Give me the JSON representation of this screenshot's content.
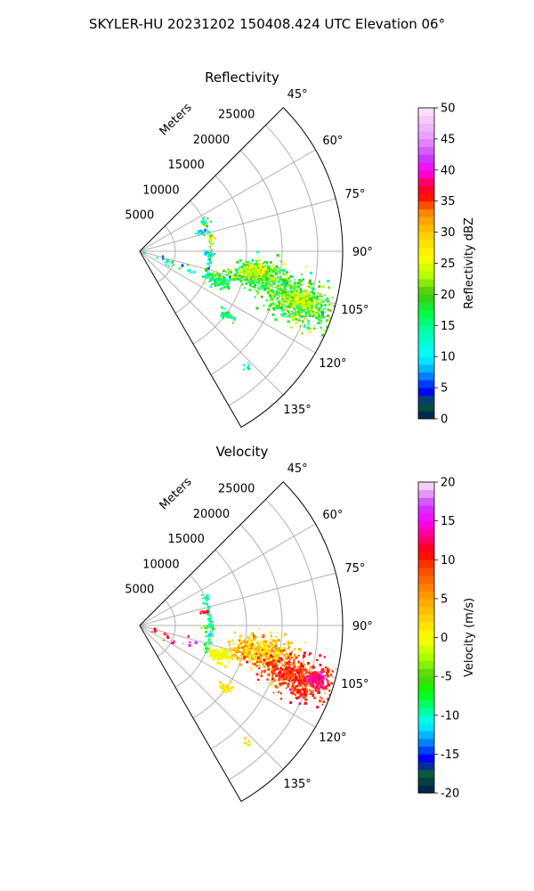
{
  "figure": {
    "suptitle": "SKYLER-HU  20231202  150408.424 UTC Elevation 06°"
  },
  "colors": {
    "grid": "#b0b0b0",
    "axes": "#000000",
    "background": "#ffffff"
  },
  "chart_data": [
    {
      "type": "heatmap",
      "projection": "polar-sector",
      "title": "Reflectivity",
      "range_label": "Meters",
      "range_ticks": [
        5000,
        10000,
        15000,
        20000,
        25000
      ],
      "range_max": 28500,
      "azimuth_range_deg": [
        45,
        150
      ],
      "azimuth_tick_labels": [
        "45°",
        "60°",
        "75°",
        "90°",
        "105°",
        "120°",
        "135°"
      ],
      "azimuth_ticks_deg": [
        45,
        60,
        75,
        90,
        105,
        120,
        135
      ],
      "grid": true,
      "colorbar": {
        "label": "Reflectivity dBZ",
        "min": 0,
        "max": 50,
        "ticks": [
          0,
          5,
          10,
          15,
          20,
          25,
          30,
          35,
          40,
          45,
          50
        ],
        "stops": [
          [
            0,
            "#001a4d"
          ],
          [
            2.5,
            "#0a5a3a"
          ],
          [
            4.5,
            "#0000ff"
          ],
          [
            7.5,
            "#00a0ff"
          ],
          [
            10,
            "#00ffff"
          ],
          [
            14,
            "#00ffb0"
          ],
          [
            17,
            "#00ff40"
          ],
          [
            20,
            "#3cc80a"
          ],
          [
            23,
            "#b4ff00"
          ],
          [
            26,
            "#ffff00"
          ],
          [
            30,
            "#ffc800"
          ],
          [
            33,
            "#ff8c00"
          ],
          [
            36,
            "#ff0000"
          ],
          [
            38,
            "#ff0064"
          ],
          [
            40,
            "#ff00ff"
          ],
          [
            42,
            "#c83cff"
          ],
          [
            45,
            "#e696ff"
          ],
          [
            48,
            "#f5c8f5"
          ],
          [
            50,
            "#ffe6ff"
          ]
        ]
      },
      "echoes": [
        {
          "type": "arc",
          "range": 10000,
          "az": [
            62,
            112
          ],
          "count": 60,
          "v": 15,
          "spread": 4
        },
        {
          "type": "blob",
          "az": 102,
          "range": 17500,
          "saz": 3.5,
          "sr": 2200,
          "count": 420,
          "v": 19,
          "spread": 4
        },
        {
          "type": "blob",
          "az": 108,
          "range": 23500,
          "saz": 3.5,
          "sr": 2600,
          "count": 520,
          "v": 19,
          "spread": 4
        },
        {
          "type": "blob",
          "az": 100,
          "range": 16500,
          "saz": 1.5,
          "sr": 1000,
          "count": 120,
          "v": 24,
          "spread": 2
        },
        {
          "type": "blob",
          "az": 107,
          "range": 23500,
          "saz": 1.5,
          "sr": 1200,
          "count": 140,
          "v": 24,
          "spread": 2
        },
        {
          "type": "blob",
          "az": 110,
          "range": 12000,
          "saz": 2.2,
          "sr": 800,
          "count": 110,
          "v": 17,
          "spread": 3
        },
        {
          "type": "blob",
          "az": 126,
          "range": 15000,
          "saz": 1.2,
          "sr": 600,
          "count": 30,
          "v": 16,
          "spread": 2
        },
        {
          "type": "blob",
          "az": 137,
          "range": 22000,
          "saz": 0.6,
          "sr": 300,
          "count": 8,
          "v": 15,
          "spread": 3
        },
        {
          "type": "blob",
          "az": 73,
          "range": 9000,
          "saz": 1.0,
          "sr": 400,
          "count": 10,
          "v": 8,
          "spread": 2
        },
        {
          "type": "blob",
          "az": 92,
          "range": 9400,
          "saz": 1.0,
          "sr": 400,
          "count": 10,
          "v": 8,
          "spread": 2
        },
        {
          "type": "blob",
          "az": 80,
          "range": 10200,
          "saz": 1.0,
          "sr": 300,
          "count": 6,
          "v": 27,
          "spread": 3
        },
        {
          "type": "blob",
          "az": 110,
          "range": 4500,
          "saz": 4.0,
          "sr": 1800,
          "count": 20,
          "v": 12,
          "spread": 5
        }
      ]
    },
    {
      "type": "heatmap",
      "projection": "polar-sector",
      "title": "Velocity",
      "range_label": "Meters",
      "range_ticks": [
        5000,
        10000,
        15000,
        20000,
        25000
      ],
      "range_max": 28500,
      "azimuth_range_deg": [
        45,
        150
      ],
      "azimuth_tick_labels": [
        "45°",
        "60°",
        "75°",
        "90°",
        "105°",
        "120°",
        "135°"
      ],
      "azimuth_ticks_deg": [
        45,
        60,
        75,
        90,
        105,
        120,
        135
      ],
      "grid": true,
      "colorbar": {
        "label": "Velocity (m/s)",
        "min": -20,
        "max": 20,
        "ticks": [
          -20,
          -15,
          -10,
          -5,
          0,
          5,
          10,
          15,
          20
        ],
        "stops": [
          [
            -20,
            "#001a4d"
          ],
          [
            -17.5,
            "#0a5a3a"
          ],
          [
            -15.5,
            "#0000ff"
          ],
          [
            -13,
            "#00a0ff"
          ],
          [
            -11,
            "#00ffff"
          ],
          [
            -9,
            "#00ff80"
          ],
          [
            -7,
            "#00ff00"
          ],
          [
            -5,
            "#50d20a"
          ],
          [
            -3,
            "#96ff00"
          ],
          [
            -1,
            "#e6ff00"
          ],
          [
            0,
            "#ffff00"
          ],
          [
            3,
            "#ffc800"
          ],
          [
            6,
            "#ff8c00"
          ],
          [
            9,
            "#ff4000"
          ],
          [
            11,
            "#ff0000"
          ],
          [
            13,
            "#ff0080"
          ],
          [
            15,
            "#ff00ff"
          ],
          [
            17,
            "#c83cff"
          ],
          [
            19,
            "#f0b4f0"
          ],
          [
            20,
            "#ffe6ff"
          ]
        ]
      },
      "echoes": [
        {
          "type": "arc",
          "range": 10000,
          "az": [
            62,
            112
          ],
          "count": 60,
          "v": -9,
          "spread": 1.5
        },
        {
          "type": "blob",
          "az": 102,
          "range": 17500,
          "saz": 3.5,
          "sr": 2200,
          "count": 420,
          "v": 3,
          "spread": 2.5
        },
        {
          "type": "blob",
          "az": 108,
          "range": 23500,
          "saz": 3.5,
          "sr": 2600,
          "count": 520,
          "v": 9.5,
          "spread": 1.8
        },
        {
          "type": "blob",
          "az": 107,
          "range": 26000,
          "saz": 1.2,
          "sr": 800,
          "count": 80,
          "v": 13.5,
          "spread": 1
        },
        {
          "type": "blob",
          "az": 110,
          "range": 12000,
          "saz": 2.2,
          "sr": 800,
          "count": 110,
          "v": 0,
          "spread": 1
        },
        {
          "type": "blob",
          "az": 126,
          "range": 15000,
          "saz": 1.2,
          "sr": 600,
          "count": 30,
          "v": 1,
          "spread": 1
        },
        {
          "type": "blob",
          "az": 137,
          "range": 22000,
          "saz": 0.6,
          "sr": 300,
          "count": 8,
          "v": 2,
          "spread": 2
        },
        {
          "type": "blob",
          "az": 78,
          "range": 9200,
          "saz": 1.0,
          "sr": 300,
          "count": 10,
          "v": 11,
          "spread": 1
        },
        {
          "type": "blob",
          "az": 92,
          "range": 9400,
          "saz": 1.0,
          "sr": 400,
          "count": 8,
          "v": -5,
          "spread": 2
        },
        {
          "type": "blob",
          "az": 110,
          "range": 4500,
          "saz": 4.0,
          "sr": 1800,
          "count": 20,
          "v": 13,
          "spread": 4
        }
      ]
    }
  ]
}
